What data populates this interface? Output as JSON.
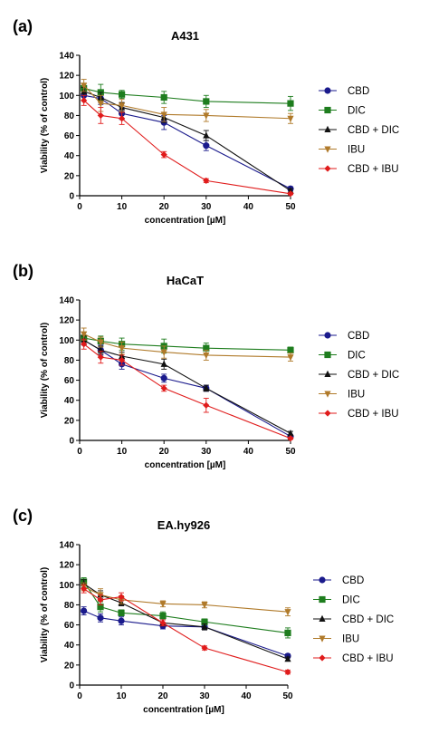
{
  "chart_data": [
    {
      "type": "line",
      "panel_label": "(a)",
      "title": "A431",
      "xlabel": "concentration [µM]",
      "ylabel": "Viability (% of control)",
      "xlim": [
        0,
        50
      ],
      "ylim": [
        0,
        140
      ],
      "xticks": [
        "0",
        "10",
        "20",
        "30",
        "40",
        "50"
      ],
      "yticks": [
        "0",
        "20",
        "40",
        "60",
        "80",
        "100",
        "120",
        "140"
      ],
      "legend_position": "right",
      "series": [
        {
          "name": "CBD",
          "color": "#1a1a8c",
          "marker": "circle",
          "x": [
            1,
            5,
            10,
            20,
            30,
            50
          ],
          "y": [
            100,
            97,
            82,
            73,
            50,
            7
          ],
          "err": [
            5,
            6,
            6,
            7,
            5,
            2
          ]
        },
        {
          "name": "DIC",
          "color": "#1e7d1e",
          "marker": "square",
          "x": [
            1,
            5,
            10,
            20,
            30,
            50
          ],
          "y": [
            107,
            103,
            101,
            98,
            94,
            92
          ],
          "err": [
            5,
            8,
            4,
            6,
            6,
            7
          ]
        },
        {
          "name": "CBD + DIC",
          "color": "#111111",
          "marker": "triangle-up",
          "x": [
            1,
            5,
            10,
            20,
            30,
            50
          ],
          "y": [
            104,
            98,
            88,
            78,
            60,
            5
          ],
          "err": [
            4,
            5,
            5,
            5,
            5,
            2
          ]
        },
        {
          "name": "IBU",
          "color": "#b07a2a",
          "marker": "triangle-down",
          "x": [
            1,
            5,
            10,
            20,
            30,
            50
          ],
          "y": [
            110,
            92,
            90,
            81,
            80,
            77
          ],
          "err": [
            6,
            8,
            6,
            7,
            6,
            5
          ]
        },
        {
          "name": "CBD + IBU",
          "color": "#e01b1b",
          "marker": "diamond",
          "x": [
            1,
            5,
            10,
            20,
            30,
            50
          ],
          "y": [
            95,
            80,
            77,
            41,
            15,
            2
          ],
          "err": [
            5,
            8,
            6,
            3,
            2,
            1
          ]
        }
      ]
    },
    {
      "type": "line",
      "panel_label": "(b)",
      "title": "HaCaT",
      "xlabel": "concentration [µM]",
      "ylabel": "Viability (% of control)",
      "xlim": [
        0,
        50
      ],
      "ylim": [
        0,
        140
      ],
      "xticks": [
        "0",
        "10",
        "20",
        "30",
        "40",
        "50"
      ],
      "yticks": [
        "0",
        "20",
        "40",
        "60",
        "80",
        "100",
        "120",
        "140"
      ],
      "legend_position": "right",
      "series": [
        {
          "name": "CBD",
          "color": "#1a1a8c",
          "marker": "circle",
          "x": [
            1,
            5,
            10,
            20,
            30,
            50
          ],
          "y": [
            100,
            90,
            76,
            62,
            52,
            4
          ],
          "err": [
            5,
            5,
            5,
            4,
            3,
            1
          ]
        },
        {
          "name": "DIC",
          "color": "#1e7d1e",
          "marker": "square",
          "x": [
            1,
            5,
            10,
            20,
            30,
            50
          ],
          "y": [
            102,
            99,
            96,
            94,
            92,
            90
          ],
          "err": [
            6,
            5,
            6,
            7,
            5,
            3
          ]
        },
        {
          "name": "CBD + DIC",
          "color": "#111111",
          "marker": "triangle-up",
          "x": [
            1,
            5,
            10,
            20,
            30,
            50
          ],
          "y": [
            100,
            90,
            84,
            76,
            52,
            7
          ],
          "err": [
            4,
            4,
            4,
            5,
            3,
            2
          ]
        },
        {
          "name": "IBU",
          "color": "#b07a2a",
          "marker": "triangle-down",
          "x": [
            1,
            5,
            10,
            20,
            30,
            50
          ],
          "y": [
            106,
            98,
            92,
            88,
            85,
            83
          ],
          "err": [
            6,
            5,
            6,
            6,
            5,
            4
          ]
        },
        {
          "name": "CBD + IBU",
          "color": "#e01b1b",
          "marker": "diamond",
          "x": [
            1,
            5,
            10,
            20,
            30,
            50
          ],
          "y": [
            96,
            83,
            80,
            52,
            35,
            2
          ],
          "err": [
            5,
            6,
            5,
            3,
            7,
            1
          ]
        }
      ]
    },
    {
      "type": "line",
      "panel_label": "(c)",
      "title": "EA.hy926",
      "xlabel": "concentration [µM]",
      "ylabel": "Viability (% of control)",
      "xlim": [
        0,
        50
      ],
      "ylim": [
        0,
        140
      ],
      "xticks": [
        "0",
        "10",
        "20",
        "30",
        "40",
        "50"
      ],
      "yticks": [
        "0",
        "20",
        "40",
        "60",
        "80",
        "100",
        "120",
        "140"
      ],
      "legend_position": "right",
      "series": [
        {
          "name": "CBD",
          "color": "#1a1a8c",
          "marker": "circle",
          "x": [
            1,
            5,
            10,
            20,
            30,
            50
          ],
          "y": [
            74,
            67,
            64,
            59,
            58,
            29
          ],
          "err": [
            4,
            4,
            4,
            3,
            3,
            2
          ]
        },
        {
          "name": "DIC",
          "color": "#1e7d1e",
          "marker": "square",
          "x": [
            1,
            5,
            10,
            20,
            30,
            50
          ],
          "y": [
            103,
            78,
            72,
            69,
            63,
            52
          ],
          "err": [
            4,
            5,
            3,
            4,
            3,
            5
          ]
        },
        {
          "name": "CBD + DIC",
          "color": "#111111",
          "marker": "triangle-up",
          "x": [
            1,
            5,
            10,
            20,
            30,
            50
          ],
          "y": [
            101,
            90,
            82,
            62,
            58,
            26
          ],
          "err": [
            4,
            4,
            3,
            3,
            3,
            2
          ]
        },
        {
          "name": "IBU",
          "color": "#b07a2a",
          "marker": "triangle-down",
          "x": [
            1,
            5,
            10,
            20,
            30,
            50
          ],
          "y": [
            98,
            90,
            85,
            81,
            80,
            73
          ],
          "err": [
            4,
            6,
            4,
            3,
            3,
            4
          ]
        },
        {
          "name": "CBD + IBU",
          "color": "#e01b1b",
          "marker": "diamond",
          "x": [
            1,
            5,
            10,
            20,
            30,
            50
          ],
          "y": [
            96,
            85,
            88,
            62,
            37,
            13
          ],
          "err": [
            4,
            5,
            4,
            3,
            2,
            2
          ]
        }
      ]
    }
  ]
}
